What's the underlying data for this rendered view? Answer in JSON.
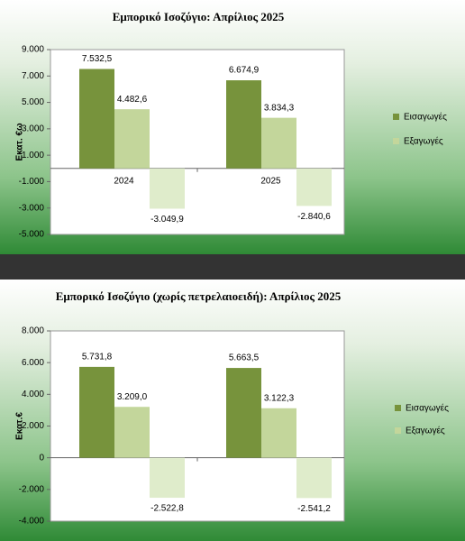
{
  "chart_data": [
    {
      "type": "bar",
      "title": "Εμπορικό Ισοζύγιο: Απρίλιος 2025",
      "ylabel": "Εκατ. €ω",
      "categories": [
        "2024",
        "2025"
      ],
      "series": [
        {
          "name": "Εισαγωγές",
          "color": "#77933c",
          "values": [
            7532.5,
            6674.9
          ],
          "value_labels": [
            "7.532,5",
            "6.674,9"
          ]
        },
        {
          "name": "Εξαγωγές",
          "color": "#c3d69b",
          "values": [
            4482.6,
            3834.3
          ],
          "value_labels": [
            "4.482,6",
            "3.834,3"
          ]
        },
        {
          "color": "#dfeccb",
          "values": [
            -3049.9,
            -2840.6
          ],
          "value_labels": [
            "-3.049,9",
            "-2.840,6"
          ]
        }
      ],
      "ylim": [
        -5000,
        9000
      ],
      "yticks": [
        {
          "value": -5000,
          "label": "-5.000"
        },
        {
          "value": -3000,
          "label": "-3.000"
        },
        {
          "value": -1000,
          "label": "-1.000"
        },
        {
          "value": 1000,
          "label": "1.000"
        },
        {
          "value": 3000,
          "label": "3.000"
        },
        {
          "value": 5000,
          "label": "5.000"
        },
        {
          "value": 7000,
          "label": "7.000"
        },
        {
          "value": 9000,
          "label": "9.000"
        }
      ],
      "legend": "right"
    },
    {
      "type": "bar",
      "title": "Εμπορικό Ισοζύγιο (χωρίς πετρελαιοειδή): Απρίλιος 2025",
      "ylabel": "Εκατ.€",
      "categories": [
        null,
        null
      ],
      "series": [
        {
          "name": "Εισαγωγές",
          "color": "#77933c",
          "values": [
            5731.8,
            5663.5
          ],
          "value_labels": [
            "5.731,8",
            "5.663,5"
          ]
        },
        {
          "name": "Εξαγωγές",
          "color": "#c3d69b",
          "values": [
            3209.0,
            3122.3
          ],
          "value_labels": [
            "3.209,0",
            "3.122,3"
          ]
        },
        {
          "color": "#dfeccb",
          "values": [
            -2522.8,
            -2541.2
          ],
          "value_labels": [
            "-2.522,8",
            "-2.541,2"
          ]
        }
      ],
      "ylim": [
        -4000,
        8000
      ],
      "yticks": [
        {
          "value": -4000,
          "label": "-4.000"
        },
        {
          "value": -2000,
          "label": "-2.000"
        },
        0,
        {
          "value": 2000,
          "label": "2.000"
        },
        {
          "value": 4000,
          "label": "4.000"
        },
        {
          "value": 6000,
          "label": "6.000"
        },
        {
          "value": 8000,
          "label": "8.000"
        }
      ],
      "legend": "right"
    }
  ]
}
